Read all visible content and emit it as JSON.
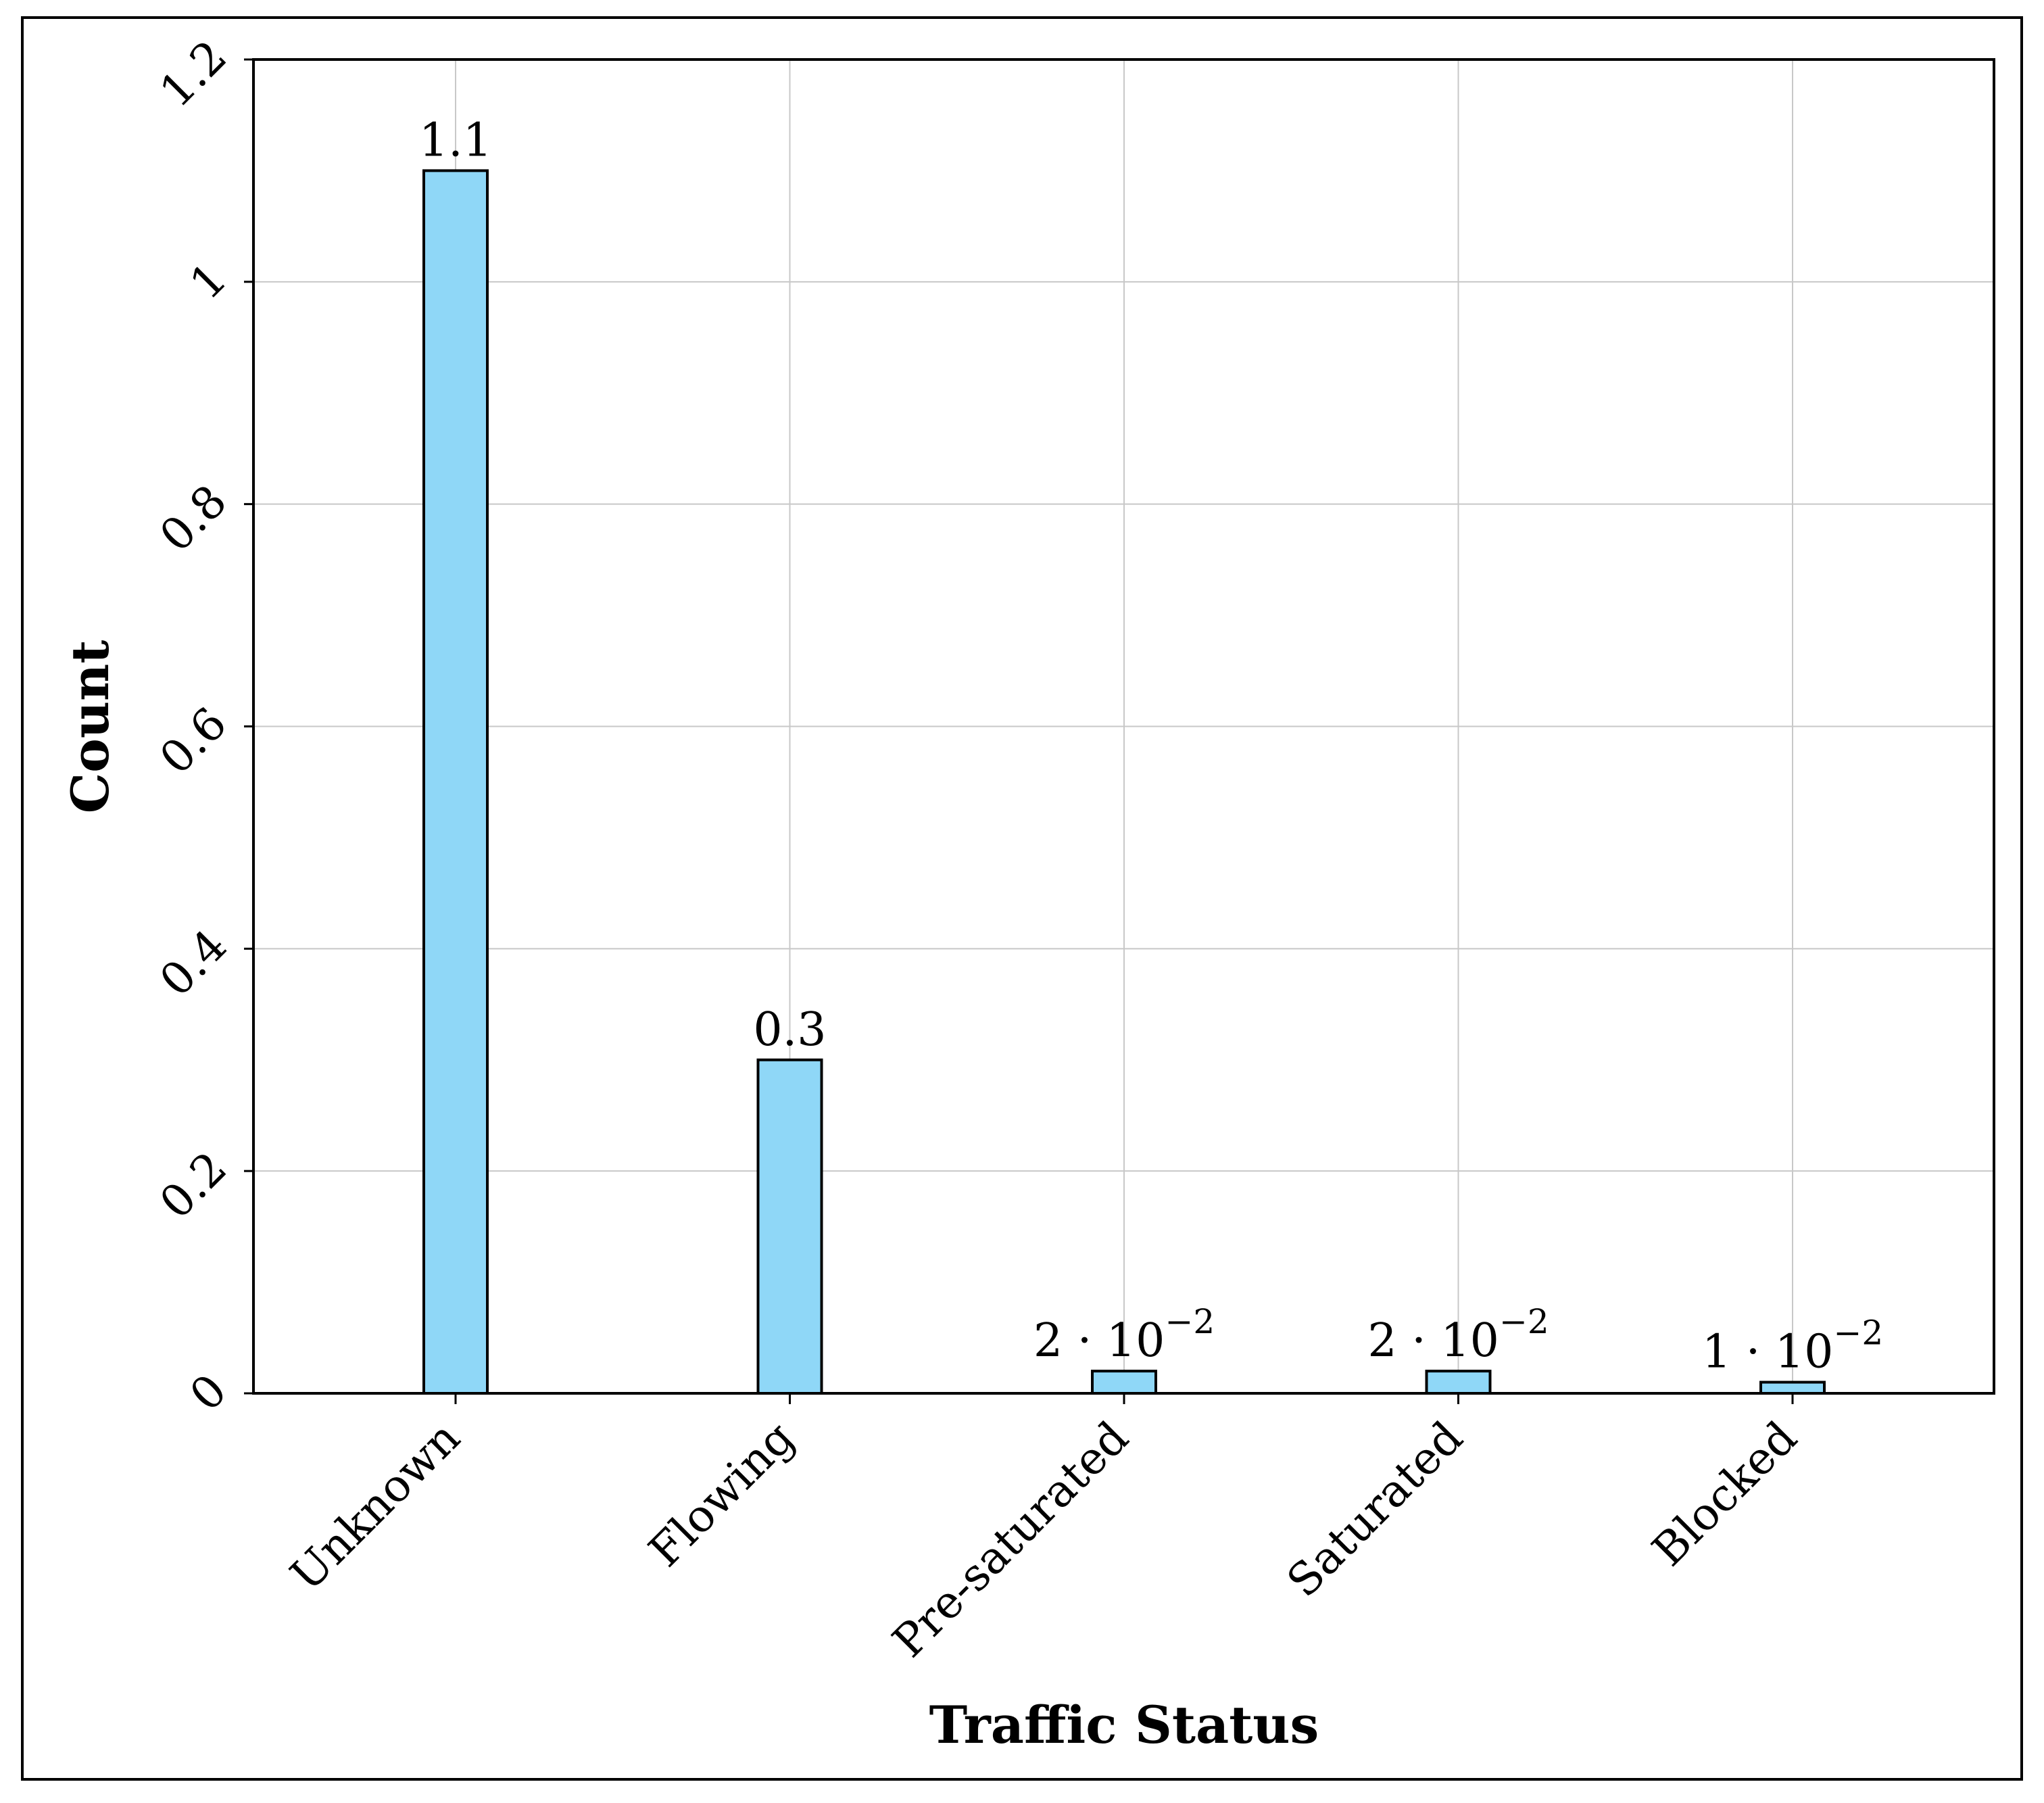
{
  "chart_data": {
    "type": "bar",
    "xlabel": "Traffic Status",
    "ylabel": "Count",
    "categories": [
      "Unknown",
      "Flowing",
      "Pre-saturated",
      "Saturated",
      "Blocked"
    ],
    "values": [
      1.1,
      0.3,
      0.02,
      0.02,
      0.01
    ],
    "data_labels": [
      {
        "mantissa": "1.1",
        "exponent": ""
      },
      {
        "mantissa": "0.3",
        "exponent": ""
      },
      {
        "mantissa": "2 · 10",
        "exponent": "−2"
      },
      {
        "mantissa": "2 · 10",
        "exponent": "−2"
      },
      {
        "mantissa": "1 · 10",
        "exponent": "−2"
      }
    ],
    "ylim": [
      0,
      1.2
    ],
    "yticks": [
      0,
      0.2,
      0.4,
      0.6,
      0.8,
      1,
      1.2
    ],
    "ytick_labels": [
      "0",
      "0.2",
      "0.4",
      "0.6",
      "0.8",
      "1",
      "1.2"
    ],
    "grid": true,
    "colors": {
      "bar_fill": "#8fd7f7",
      "bar_stroke": "#000000",
      "grid": "#c8c8c8"
    }
  }
}
